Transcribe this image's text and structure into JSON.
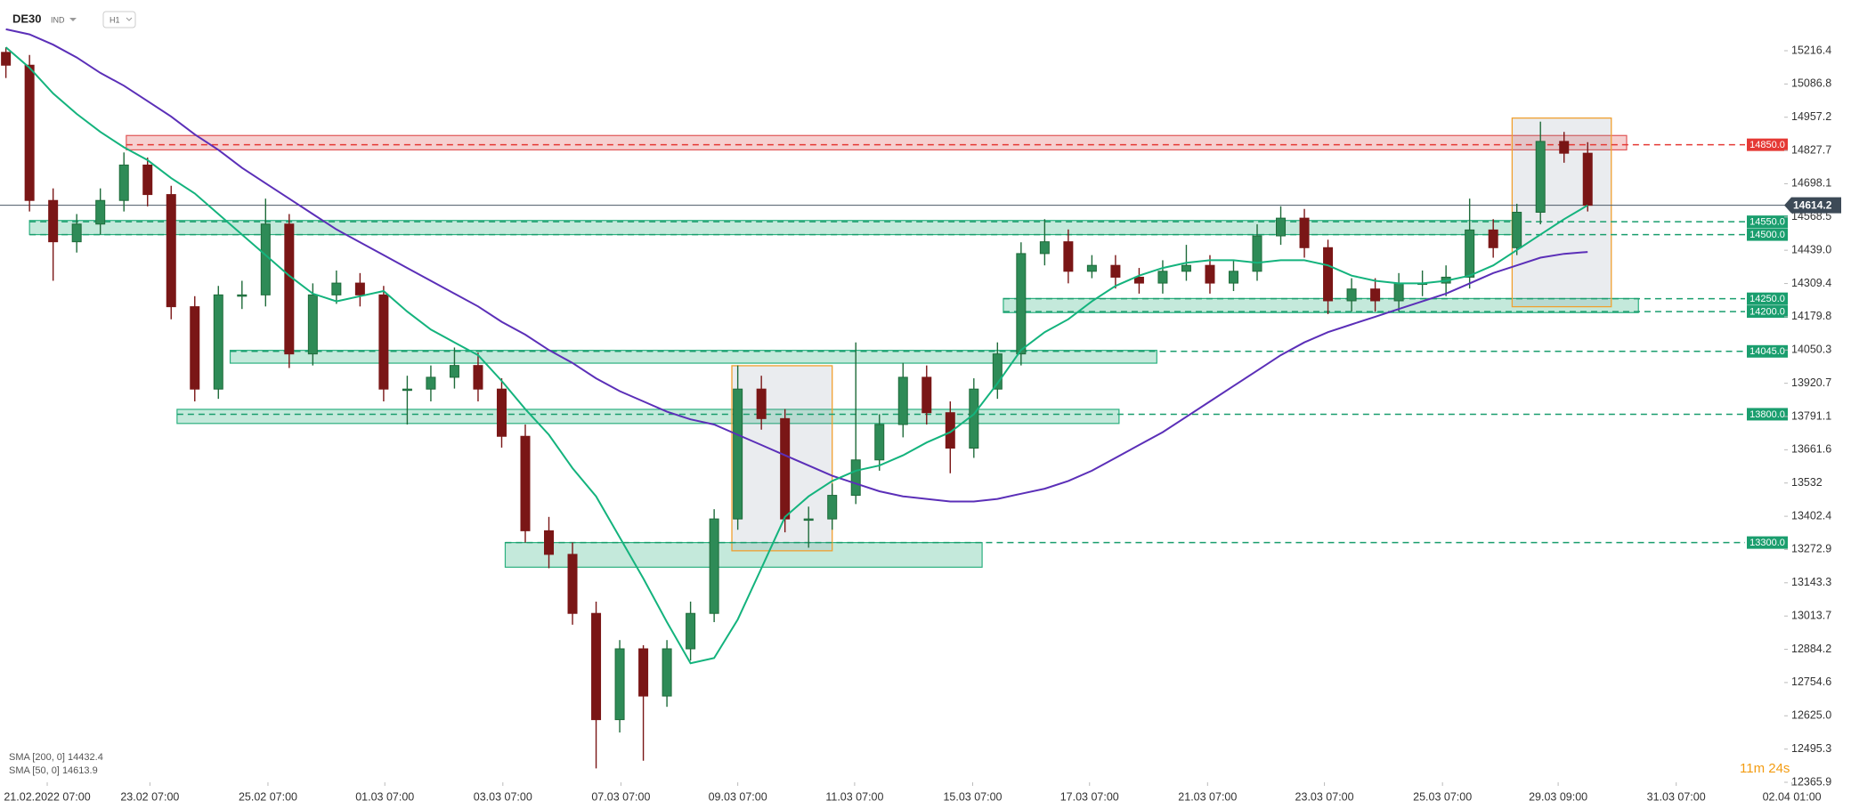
{
  "chart_data": {
    "type": "candlestick",
    "instrument": "DE30",
    "market": "IND",
    "timeframe": "H1",
    "timer": "11m 24s",
    "up_color": "#1e6b3a",
    "down_color": "#7a1616",
    "ylim": [
      12365.9,
      15414.0
    ],
    "xlim": [
      -0.25,
      75.25
    ],
    "yticks": [
      15216.4,
      15086.8,
      14957.2,
      14827.7,
      14698.1,
      14568.5,
      {
        "value": 14439.0,
        "label": "14439.0"
      },
      14309.4,
      14179.8,
      14050.3,
      13920.7,
      13791.1,
      13661.6,
      13532.0,
      {
        "value": 13402.4,
        "label": "13402.4"
      },
      13272.9,
      13143.3,
      13013.7,
      12884.2,
      12754.6,
      {
        "value": 12625.0,
        "label": "12625.0"
      },
      12495.3,
      12365.9
    ],
    "xticks": [
      {
        "value": 1.75,
        "label": "21.02.2022  07:00"
      },
      {
        "value": 6.1,
        "label": "23.02  07:00"
      },
      {
        "value": 11.1,
        "label": "25.02  07:00"
      },
      {
        "value": 16.05,
        "label": "01.03  07:00"
      },
      {
        "value": 21.05,
        "label": "03.03  07:00"
      },
      {
        "value": 26.05,
        "label": "07.03  07:00"
      },
      {
        "value": 31.0,
        "label": "09.03  07:00"
      },
      {
        "value": 35.95,
        "label": "11.03  07:00"
      },
      {
        "value": 40.95,
        "label": "15.03  07:00"
      },
      {
        "value": 45.9,
        "label": "17.03  07:00"
      },
      {
        "value": 50.9,
        "label": "21.03  07:00"
      },
      {
        "value": 55.85,
        "label": "23.03  07:00"
      },
      {
        "value": 60.85,
        "label": "25.03  07:00"
      },
      {
        "value": 65.75,
        "label": "29.03  09:00"
      },
      {
        "value": 70.75,
        "label": "31.03  07:00"
      },
      {
        "value": 75.65,
        "label": "02.04  01:00"
      }
    ],
    "candles": {
      "open": [
        15210,
        15160,
        14633,
        14472,
        14541,
        14633,
        14771,
        14656,
        14219,
        13898,
        14265,
        14265,
        14541,
        14035,
        14265,
        14311,
        14265,
        13898,
        13898,
        13944,
        13990,
        13898,
        13714,
        13346,
        13254,
        13024,
        12610,
        12886,
        12702,
        12886,
        13024,
        13392,
        13898,
        13783,
        13392,
        13392,
        13484,
        13622,
        13760,
        13944,
        13806,
        13668,
        13898,
        14035,
        14426,
        14472,
        14357,
        14380,
        14334,
        14311,
        14357,
        14380,
        14311,
        14357,
        14495,
        14564,
        14449,
        14242,
        14288,
        14242,
        14311,
        14311,
        14334,
        14518,
        14449,
        14587,
        14863,
        14817
      ],
      "high": [
        15230,
        15200,
        14680,
        14580,
        14680,
        14820,
        14800,
        14690,
        14260,
        14300,
        14320,
        14640,
        14580,
        14310,
        14360,
        14350,
        14300,
        13950,
        13990,
        14060,
        14040,
        13940,
        13760,
        13400,
        13300,
        13070,
        12920,
        12900,
        12920,
        13070,
        13430,
        13990,
        13950,
        13820,
        13440,
        13530,
        14080,
        13800,
        14000,
        13990,
        13850,
        13940,
        14080,
        14470,
        14560,
        14520,
        14420,
        14420,
        14370,
        14400,
        14460,
        14420,
        14400,
        14540,
        14610,
        14600,
        14480,
        14330,
        14330,
        14350,
        14360,
        14380,
        14640,
        14560,
        14620,
        14940,
        14900,
        14860
      ],
      "low": [
        15110,
        14590,
        14320,
        14430,
        14500,
        14590,
        14610,
        14170,
        13850,
        13860,
        14210,
        14220,
        13980,
        13990,
        14230,
        14220,
        13850,
        13760,
        13850,
        13900,
        13850,
        13670,
        13300,
        13200,
        12980,
        12420,
        12560,
        12450,
        12660,
        12840,
        12990,
        13350,
        13740,
        13340,
        13280,
        13350,
        13450,
        13580,
        13710,
        13760,
        13570,
        13630,
        13860,
        13990,
        14380,
        14310,
        14330,
        14290,
        14270,
        14270,
        14320,
        14270,
        14280,
        14320,
        14460,
        14410,
        14190,
        14200,
        14200,
        14200,
        14260,
        14260,
        14290,
        14410,
        14420,
        14540,
        14780,
        14590
      ],
      "close": [
        15160,
        14633,
        14472,
        14541,
        14633,
        14771,
        14656,
        14219,
        13898,
        14265,
        14265,
        14541,
        14035,
        14265,
        14311,
        14265,
        13898,
        13898,
        13944,
        13990,
        13898,
        13714,
        13346,
        13254,
        13024,
        12610,
        12886,
        12702,
        12886,
        13024,
        13392,
        13898,
        13783,
        13392,
        13392,
        13484,
        13622,
        13760,
        13944,
        13806,
        13668,
        13898,
        14035,
        14426,
        14472,
        14357,
        14380,
        14334,
        14311,
        14357,
        14380,
        14311,
        14357,
        14495,
        14564,
        14449,
        14242,
        14288,
        14242,
        14311,
        14311,
        14334,
        14518,
        14449,
        14587,
        14863,
        14817,
        14614.2
      ]
    },
    "series": [
      {
        "name": "SMA [200, 0]",
        "color": "#5b2fb8",
        "values": [
          15300,
          15280,
          15240,
          15190,
          15130,
          15080,
          15020,
          14960,
          14890,
          14830,
          14760,
          14700,
          14640,
          14580,
          14520,
          14470,
          14420,
          14370,
          14320,
          14270,
          14220,
          14160,
          14110,
          14050,
          14000,
          13940,
          13890,
          13850,
          13810,
          13780,
          13760,
          13720,
          13680,
          13640,
          13600,
          13560,
          13530,
          13500,
          13480,
          13470,
          13460,
          13460,
          13470,
          13490,
          13510,
          13540,
          13580,
          13630,
          13680,
          13730,
          13790,
          13850,
          13910,
          13970,
          14030,
          14080,
          14120,
          14150,
          14180,
          14210,
          14240,
          14270,
          14310,
          14350,
          14380,
          14410,
          14425,
          14432.4
        ]
      },
      {
        "name": "SMA [50, 0]",
        "color": "#14b37d",
        "values": [
          15230,
          15150,
          15050,
          14970,
          14900,
          14840,
          14790,
          14720,
          14660,
          14580,
          14500,
          14420,
          14340,
          14270,
          14240,
          14260,
          14280,
          14200,
          14130,
          14080,
          14030,
          13930,
          13820,
          13720,
          13590,
          13480,
          13320,
          13160,
          12990,
          12830,
          12850,
          13000,
          13200,
          13400,
          13480,
          13540,
          13580,
          13600,
          13640,
          13690,
          13730,
          13800,
          13920,
          14050,
          14120,
          14170,
          14240,
          14300,
          14340,
          14370,
          14390,
          14400,
          14400,
          14390,
          14400,
          14400,
          14380,
          14340,
          14320,
          14310,
          14310,
          14320,
          14340,
          14380,
          14440,
          14500,
          14560,
          14613.9
        ]
      }
    ],
    "zones": [
      {
        "color": "#e05555",
        "from": 14830,
        "to": 14886,
        "x0": 5.1,
        "x1": 68.65
      },
      {
        "color": "#2bb07f",
        "from": 14500,
        "to": 14555,
        "x0": 1,
        "x1": 64
      },
      {
        "color": "#2bb07f",
        "from": 14196,
        "to": 14251,
        "x0": 42.25,
        "x1": 69.15
      },
      {
        "color": "#2bb07f",
        "from": 13999,
        "to": 14049,
        "x0": 9.5,
        "x1": 48.75
      },
      {
        "color": "#2bb07f",
        "from": 13764,
        "to": 13819,
        "x0": 7.25,
        "x1": 47.15
      },
      {
        "color": "#2bb07f",
        "from": 13204,
        "to": 13300,
        "x0": 21.15,
        "x1": 41.35
      }
    ],
    "boxes": [
      {
        "color": "#f0a030",
        "from": 13268,
        "to": 13989,
        "x0": 30.75,
        "x1": 35
      },
      {
        "color": "#f0a030",
        "from": 14219,
        "to": 14954,
        "x0": 63.8,
        "x1": 68
      }
    ],
    "levels": [
      {
        "value": 14850,
        "label": "14850.0",
        "color": "#e53935"
      },
      {
        "value": 14550,
        "label": "14550.0",
        "color": "#1a9e6e"
      },
      {
        "value": 14500,
        "label": "14500.0",
        "color": "#1a9e6e"
      },
      {
        "value": 14250,
        "label": "14250.0",
        "color": "#1a9e6e"
      },
      {
        "value": 14200,
        "label": "14200.0",
        "color": "#1a9e6e"
      },
      {
        "value": 14045,
        "label": "14045.0",
        "color": "#1a9e6e"
      },
      {
        "value": 13800,
        "label": "13800.0",
        "color": "#1a9e6e"
      },
      {
        "value": 13300,
        "label": "13300.0",
        "color": "#1a9e6e"
      }
    ]
  }
}
